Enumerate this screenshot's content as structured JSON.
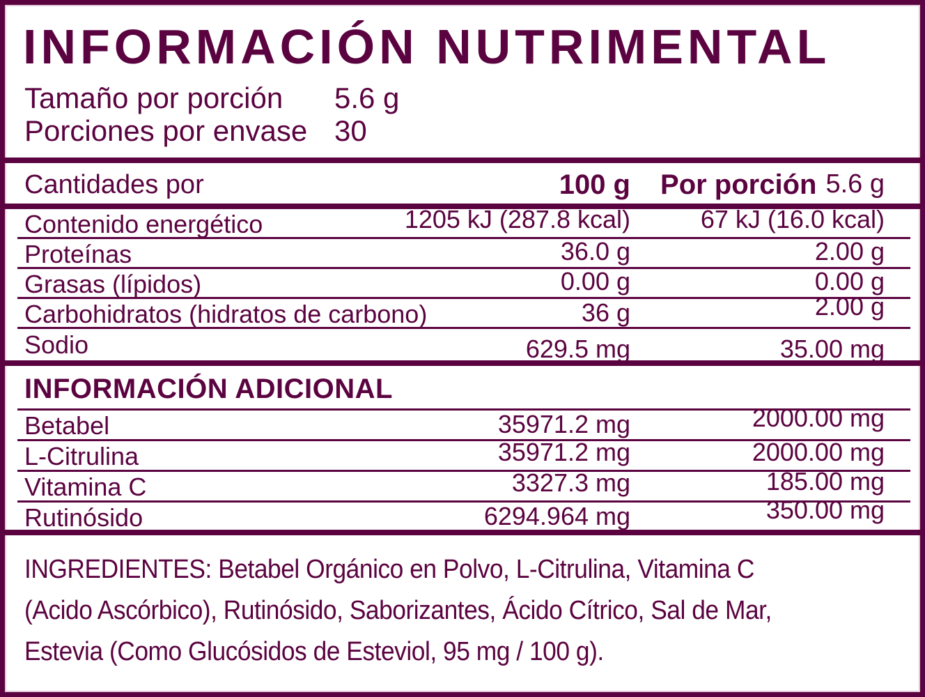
{
  "colors": {
    "primary": "#5B0340",
    "background": "#FFFFFF",
    "inner_highlight": "#E2CBD8"
  },
  "header": {
    "title": "INFORMACIÓN NUTRIMENTAL",
    "serving_rows": [
      {
        "label": "Tamaño por porción",
        "value": "5.6 g"
      },
      {
        "label": "Porciones por envase",
        "value": "30"
      }
    ]
  },
  "nutrition_table": {
    "header": {
      "label": "Cantidades por",
      "col1": "100 g",
      "col2_bold": "Por porción",
      "col2_regular": "5.6 g"
    },
    "rows": [
      {
        "label": "Contenido energético",
        "per_100g": "1205 kJ (287.8 kcal)",
        "per_portion": "67 kJ (16.0 kcal)"
      },
      {
        "label": "Proteínas",
        "per_100g": "36.0 g",
        "per_portion": "2.00 g"
      },
      {
        "label": "Grasas (lípidos)",
        "per_100g": "0.00 g",
        "per_portion": "0.00 g"
      },
      {
        "label": "Carbohidratos (hidratos de carbono)",
        "per_100g": "36 g",
        "per_portion": "2.00 g"
      },
      {
        "label": "Sodio",
        "per_100g": "629.5 mg",
        "per_portion": "35.00 mg"
      }
    ]
  },
  "additional_info": {
    "heading": "INFORMACIÓN ADICIONAL",
    "rows": [
      {
        "label": "Betabel",
        "per_100g": "35971.2 mg",
        "per_portion": "2000.00 mg"
      },
      {
        "label": "L-Citrulina",
        "per_100g": "35971.2 mg",
        "per_portion": "2000.00 mg"
      },
      {
        "label": "Vitamina C",
        "per_100g": "3327.3 mg",
        "per_portion": "185.00 mg"
      },
      {
        "label": "Rutinósido",
        "per_100g": "6294.964 mg",
        "per_portion": "350.00 mg"
      }
    ]
  },
  "ingredients": {
    "lines": [
      "INGREDIENTES: Betabel Orgánico en Polvo, L-Citrulina, Vitamina C",
      "(Acido Ascórbico), Rutinósido, Saborizantes, Ácido Cítrico, Sal de Mar,",
      "Estevia (Como Glucósidos de Esteviol, 95 mg / 100 g)."
    ]
  }
}
